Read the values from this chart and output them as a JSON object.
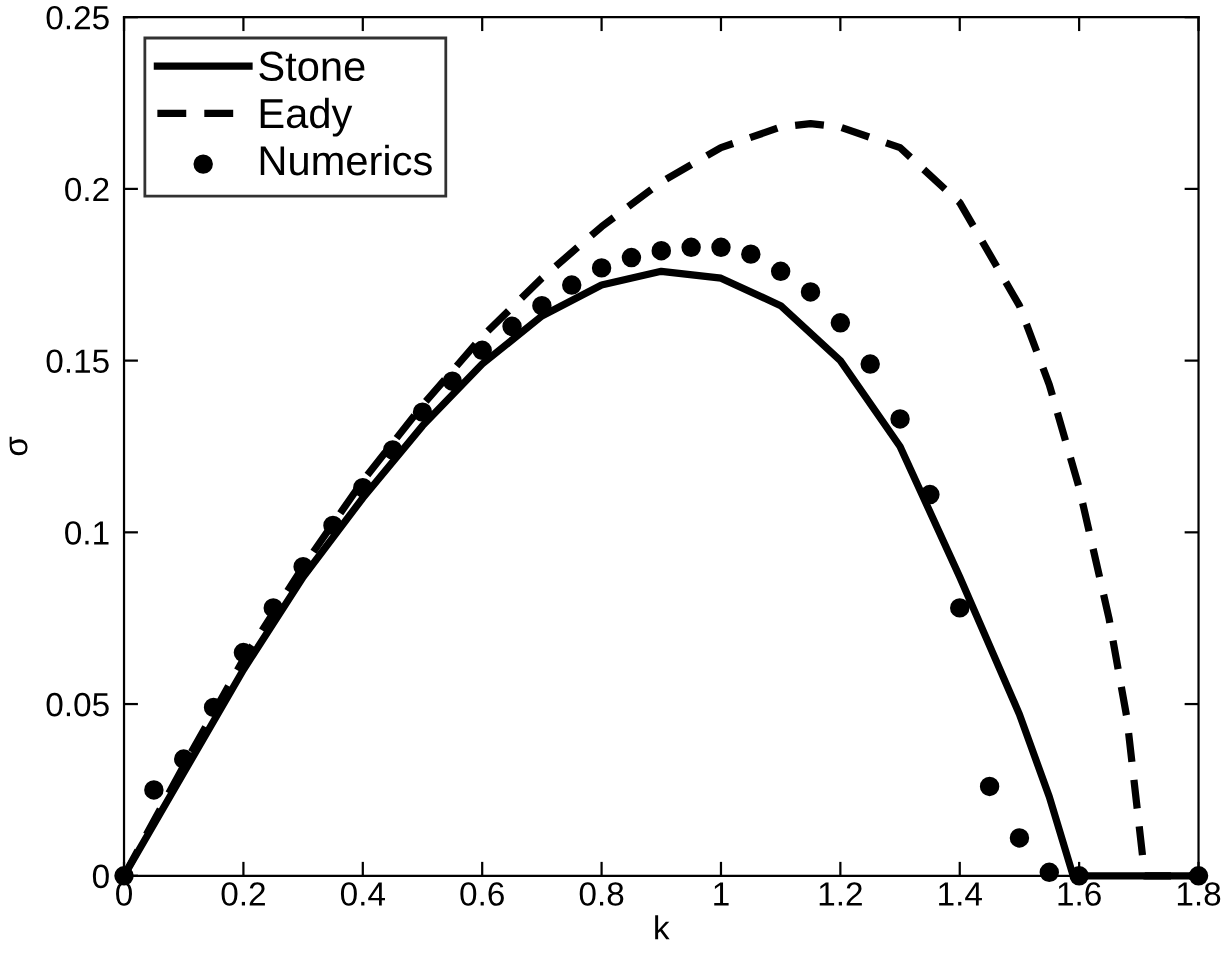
{
  "chart_data": {
    "type": "line",
    "xlabel": "k",
    "ylabel": "σ",
    "xlim": [
      0,
      1.8
    ],
    "ylim": [
      0,
      0.25
    ],
    "xticks": [
      0,
      0.2,
      0.4,
      0.6,
      0.8,
      1,
      1.2,
      1.4,
      1.6,
      1.8
    ],
    "yticks": [
      0,
      0.05,
      0.1,
      0.15,
      0.2,
      0.25
    ],
    "grid": false,
    "legend": "top left",
    "series": [
      {
        "name": "Stone",
        "line_style": "solid",
        "marker": "none",
        "color": "#000000",
        "x": [
          0,
          0.1,
          0.2,
          0.3,
          0.4,
          0.5,
          0.6,
          0.7,
          0.8,
          0.9,
          1.0,
          1.1,
          1.2,
          1.3,
          1.4,
          1.5,
          1.55,
          1.59,
          1.8
        ],
        "values": [
          0,
          0.03,
          0.06,
          0.087,
          0.11,
          0.131,
          0.149,
          0.163,
          0.172,
          0.176,
          0.174,
          0.166,
          0.15,
          0.125,
          0.087,
          0.047,
          0.023,
          0,
          0
        ]
      },
      {
        "name": "Eady",
        "line_style": "dashed",
        "marker": "none",
        "color": "#000000",
        "x": [
          0,
          0.1,
          0.2,
          0.3,
          0.4,
          0.5,
          0.6,
          0.7,
          0.8,
          0.9,
          1.0,
          1.1,
          1.15,
          1.2,
          1.3,
          1.4,
          1.5,
          1.55,
          1.6,
          1.65,
          1.68,
          1.71,
          1.8
        ],
        "values": [
          0,
          0.032,
          0.063,
          0.09,
          0.115,
          0.137,
          0.157,
          0.174,
          0.189,
          0.202,
          0.212,
          0.218,
          0.219,
          0.218,
          0.212,
          0.196,
          0.166,
          0.143,
          0.113,
          0.075,
          0.046,
          0,
          0
        ]
      },
      {
        "name": "Numerics",
        "type": "scatter",
        "marker": "circle",
        "color": "#000000",
        "x": [
          0,
          0.05,
          0.1,
          0.15,
          0.2,
          0.25,
          0.3,
          0.35,
          0.4,
          0.45,
          0.5,
          0.55,
          0.6,
          0.65,
          0.7,
          0.75,
          0.8,
          0.85,
          0.9,
          0.95,
          1.0,
          1.05,
          1.1,
          1.15,
          1.2,
          1.25,
          1.3,
          1.35,
          1.4,
          1.45,
          1.5,
          1.55,
          1.6,
          1.8
        ],
        "values": [
          0,
          0.025,
          0.034,
          0.049,
          0.065,
          0.078,
          0.09,
          0.102,
          0.113,
          0.124,
          0.135,
          0.144,
          0.153,
          0.16,
          0.166,
          0.172,
          0.177,
          0.18,
          0.182,
          0.183,
          0.183,
          0.181,
          0.176,
          0.17,
          0.161,
          0.149,
          0.133,
          0.111,
          0.078,
          0.026,
          0.011,
          0.001,
          0,
          0
        ]
      }
    ]
  }
}
